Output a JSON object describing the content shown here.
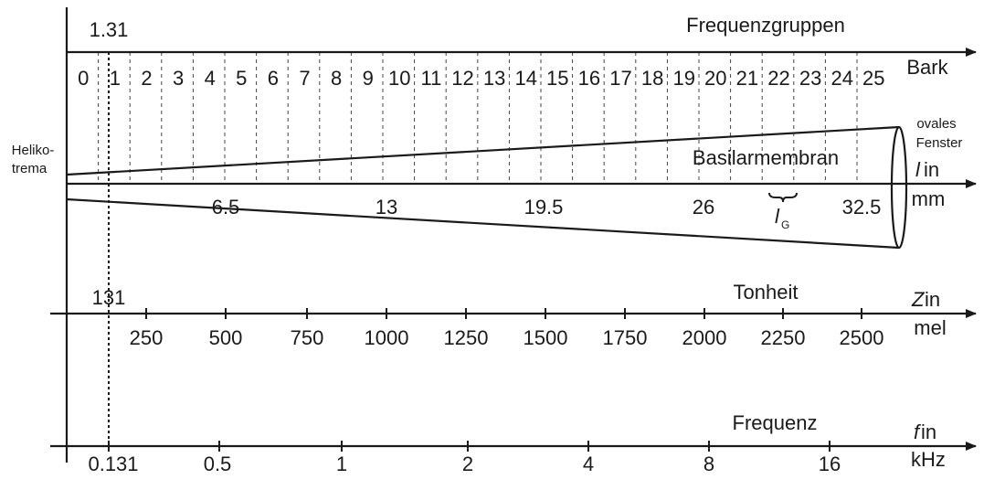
{
  "bark": {
    "title": "Frequenzgruppen",
    "unit": "Bark",
    "marker": "1.31",
    "labels": [
      "0",
      "1",
      "2",
      "3",
      "4",
      "5",
      "6",
      "7",
      "8",
      "9",
      "10",
      "11",
      "12",
      "13",
      "14",
      "15",
      "16",
      "17",
      "18",
      "19",
      "20",
      "21",
      "22",
      "23",
      "24",
      "25"
    ]
  },
  "length": {
    "unit_symbol": "l",
    "unit_in": " in",
    "unit_mm": "mm",
    "labels": [
      "6.5",
      "13",
      "19.5",
      "26",
      "32.5"
    ],
    "lg_symbol": "l",
    "lg_sub": "G",
    "membrane": "Basilarmembran",
    "left_line1": "Heliko-",
    "left_line2": "trema",
    "right_line1": "ovales",
    "right_line2": "Fenster"
  },
  "mel": {
    "title": "Tonheit",
    "unit_symbol": "Z",
    "unit_in": " in",
    "unit_mel": "mel",
    "marker": "131",
    "labels": [
      "250",
      "500",
      "750",
      "1000",
      "1250",
      "1500",
      "1750",
      "2000",
      "2250",
      "2500"
    ]
  },
  "freq": {
    "title": "Frequenz",
    "unit_symbol": "f",
    "unit_in": " in",
    "unit_khz": "kHz",
    "labels": [
      "0.131",
      "0.5",
      "1",
      "2",
      "4",
      "8",
      "16"
    ]
  }
}
